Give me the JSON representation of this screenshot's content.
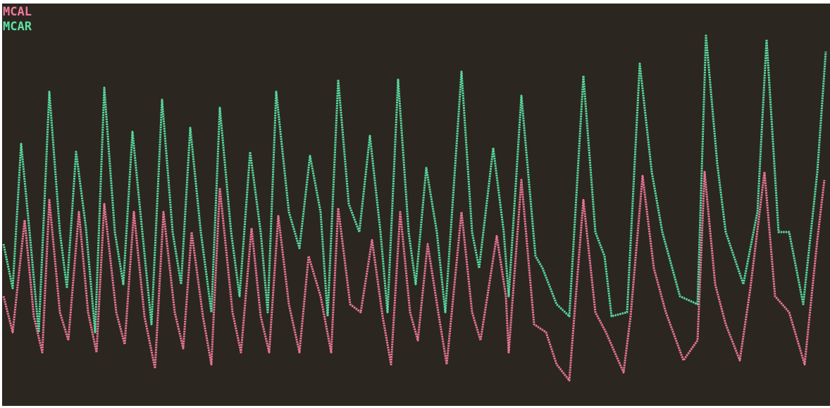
{
  "chart_data": {
    "type": "line",
    "xlim": [
      0,
      1178
    ],
    "ylim": [
      0,
      100
    ],
    "grid": false,
    "series": [
      {
        "name": "MCAL",
        "color": "#f27a9c",
        "x": [
          5,
          18,
          35,
          48,
          60,
          70,
          85,
          97,
          112,
          125,
          137,
          148,
          165,
          177,
          190,
          205,
          220,
          232,
          248,
          260,
          272,
          288,
          300,
          312,
          330,
          342,
          357,
          370,
          382,
          395,
          410,
          425,
          438,
          455,
          470,
          480,
          497,
          512,
          528,
          543,
          555,
          568,
          582,
          593,
          607,
          622,
          634,
          655,
          670,
          682,
          705,
          718,
          722,
          740,
          758,
          775,
          790,
          808,
          828,
          845,
          860,
          885,
          895,
          912,
          928,
          945,
          970,
          990,
          1000,
          1015,
          1030,
          1050,
          1065,
          1085,
          1100,
          1120,
          1142,
          1160,
          1170
        ],
        "values": [
          27,
          18,
          46,
          22,
          13,
          51,
          23,
          16,
          48,
          23,
          13,
          50,
          23,
          15,
          48,
          22,
          9,
          48,
          23,
          14,
          43,
          22,
          10,
          54,
          23,
          13,
          44,
          22,
          13,
          47,
          25,
          13,
          37,
          27,
          13,
          49,
          25,
          23,
          41,
          22,
          10,
          48,
          23,
          16,
          40,
          23,
          10,
          48,
          23,
          16,
          42,
          27,
          13,
          56,
          20,
          18,
          10,
          6,
          51,
          23,
          18,
          8,
          22,
          57,
          34,
          23,
          11,
          16,
          58,
          30,
          20,
          11,
          29,
          58,
          27,
          23,
          10,
          41,
          56
        ]
      },
      {
        "name": "MCAR",
        "color": "#5ce3a4",
        "x": [
          5,
          18,
          30,
          42,
          55,
          70,
          85,
          95,
          108,
          122,
          135,
          148,
          163,
          175,
          188,
          202,
          215,
          230,
          245,
          257,
          270,
          285,
          300,
          312,
          328,
          340,
          355,
          370,
          380,
          392,
          410,
          425,
          440,
          455,
          465,
          480,
          495,
          510,
          525,
          540,
          550,
          565,
          580,
          590,
          605,
          620,
          632,
          655,
          670,
          680,
          700,
          715,
          722,
          740,
          760,
          770,
          790,
          808,
          828,
          845,
          858,
          868,
          890,
          908,
          925,
          940,
          965,
          990,
          1002,
          1018,
          1030,
          1055,
          1075,
          1088,
          1105,
          1120,
          1140,
          1160,
          1172
        ],
        "values": [
          40,
          29,
          65,
          43,
          18,
          78,
          43,
          29,
          63,
          44,
          18,
          79,
          43,
          30,
          68,
          43,
          20,
          76,
          43,
          30,
          69,
          43,
          23,
          74,
          43,
          27,
          63,
          43,
          23,
          78,
          48,
          39,
          62,
          48,
          22,
          81,
          50,
          43,
          67,
          43,
          23,
          81,
          43,
          30,
          59,
          43,
          23,
          83,
          43,
          34,
          64,
          43,
          27,
          77,
          37,
          34,
          25,
          22,
          82,
          43,
          37,
          22,
          23,
          85,
          58,
          43,
          27,
          25,
          92,
          60,
          43,
          30,
          48,
          91,
          43,
          43,
          25,
          58,
          88
        ]
      }
    ]
  }
}
